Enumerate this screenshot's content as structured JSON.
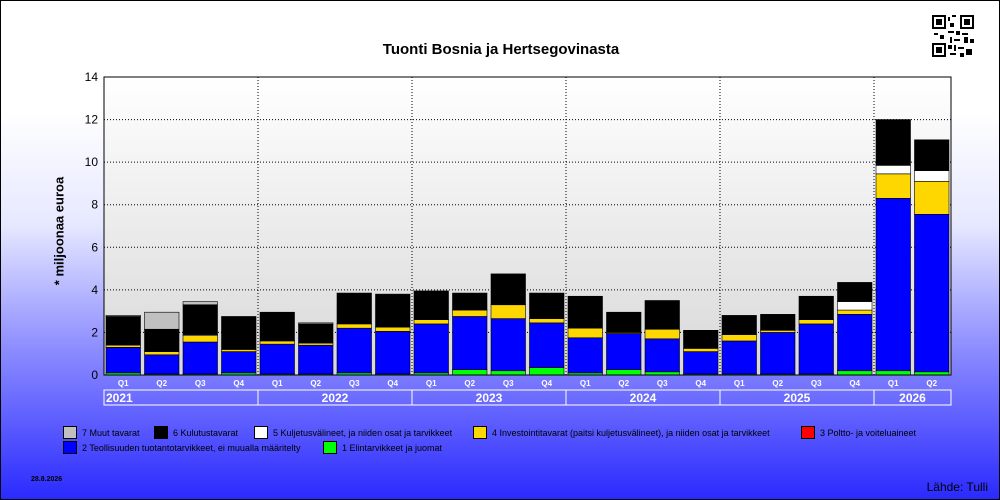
{
  "title": "Tuonti Bosnia ja Hertsegovinasta",
  "ylabel": "* miljoonaa euroa",
  "date": "28.8.2026",
  "source": "Lähde: Tulli",
  "colors": {
    "c7": "#c0c0c0",
    "c6": "#000000",
    "c5": "#ffffff",
    "c4": "#ffd700",
    "c3": "#ff0000",
    "c2": "#0000ff",
    "c1": "#00ff00"
  },
  "chart_data": {
    "type": "bar",
    "stacked": true,
    "title": "Tuonti Bosnia ja Hertsegovinasta",
    "ylabel": "* miljoonaa euroa",
    "ylim": [
      0,
      14
    ],
    "yticks": [
      "0",
      "2",
      "4",
      "6",
      "8",
      "10",
      "12",
      "14"
    ],
    "grid": true,
    "categories": [
      "Q1",
      "Q2",
      "Q3",
      "Q4",
      "Q1",
      "Q2",
      "Q3",
      "Q4",
      "Q1",
      "Q2",
      "Q3",
      "Q4",
      "Q1",
      "Q2",
      "Q3",
      "Q4",
      "Q1",
      "Q2",
      "Q3",
      "Q4",
      "Q1",
      "Q2"
    ],
    "years": [
      "2021",
      "2022",
      "2023",
      "2024",
      "2025",
      "2026"
    ],
    "series": [
      {
        "name": "1 Elintarvikkeet ja juomat",
        "color": "#00ff00",
        "values": [
          0.1,
          0.05,
          0.05,
          0.1,
          0.05,
          0.05,
          0.1,
          0.05,
          0.1,
          0.25,
          0.2,
          0.35,
          0.1,
          0.25,
          0.15,
          0.05,
          0.05,
          0.05,
          0.05,
          0.2,
          0.2,
          0.15
        ]
      },
      {
        "name": "2 Teollisuuden tuotantotarvikkeet, ei muualla määritelty",
        "color": "#0000ff",
        "values": [
          1.2,
          0.9,
          1.5,
          1.0,
          1.4,
          1.35,
          2.1,
          2.0,
          2.3,
          2.5,
          2.45,
          2.1,
          1.65,
          1.7,
          1.55,
          1.05,
          1.55,
          1.95,
          2.35,
          2.65,
          8.1,
          7.4
        ]
      },
      {
        "name": "3 Poltto- ja voiteluaineet",
        "color": "#ff0000",
        "values": [
          0,
          0,
          0,
          0,
          0,
          0,
          0,
          0,
          0,
          0,
          0,
          0,
          0,
          0,
          0,
          0,
          0,
          0,
          0,
          0,
          0,
          0
        ]
      },
      {
        "name": "4 Investointitavarat (paitsi kuljetusvälineet), ja niiden osat ja tarvikkeet",
        "color": "#ffd700",
        "values": [
          0.1,
          0.15,
          0.3,
          0.1,
          0.15,
          0.1,
          0.2,
          0.2,
          0.2,
          0.3,
          0.65,
          0.2,
          0.45,
          0.05,
          0.45,
          0.15,
          0.3,
          0.1,
          0.2,
          0.2,
          1.15,
          1.55
        ]
      },
      {
        "name": "5 Kuljetusvälineet, ja niiden osat ja tarvikkeet",
        "color": "#ffffff",
        "values": [
          0,
          0,
          0.05,
          0,
          0,
          0,
          0,
          0,
          0,
          0,
          0,
          0,
          0,
          0,
          0,
          0,
          0,
          0,
          0,
          0.4,
          0.4,
          0.5
        ]
      },
      {
        "name": "6 Kulutustavarat",
        "color": "#000000",
        "values": [
          1.35,
          1.05,
          1.4,
          1.55,
          1.35,
          0.9,
          1.45,
          1.55,
          1.35,
          0.8,
          1.45,
          1.2,
          1.5,
          0.95,
          1.35,
          0.85,
          0.9,
          0.75,
          1.1,
          0.9,
          2.15,
          1.45
        ]
      },
      {
        "name": "7 Muut tavarat",
        "color": "#c0c0c0",
        "values": [
          0.05,
          0.8,
          0.15,
          0,
          0,
          0.05,
          0,
          0,
          0,
          0,
          0,
          0,
          0,
          0,
          0,
          0,
          0,
          0,
          0,
          0,
          0,
          0
        ]
      }
    ]
  },
  "legend": [
    {
      "label": "7 Muut tavarat",
      "color": "#c0c0c0"
    },
    {
      "label": "6 Kulutustavarat",
      "color": "#000000"
    },
    {
      "label": "5 Kuljetusvälineet, ja niiden osat ja tarvikkeet",
      "color": "#ffffff"
    },
    {
      "label": "4 Investointitavarat (paitsi kuljetusvälineet), ja niiden osat ja tarvikkeet",
      "color": "#ffd700"
    },
    {
      "label": "3 Poltto- ja voiteluaineet",
      "color": "#ff0000"
    },
    {
      "label": "2 Teollisuuden tuotantotarvikkeet, ei muualla määritelty",
      "color": "#0000ff"
    },
    {
      "label": "1 Elintarvikkeet ja juomat",
      "color": "#00ff00"
    }
  ]
}
